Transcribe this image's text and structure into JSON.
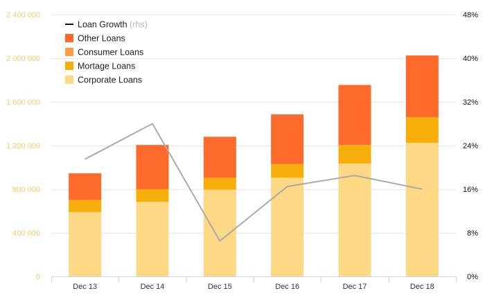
{
  "chart_data": {
    "type": "bar",
    "stacked": true,
    "categories": [
      "Dec 13",
      "Dec 14",
      "Dec 15",
      "Dec 16",
      "Dec 17",
      "Dec 18"
    ],
    "series": [
      {
        "name": "Corporate Loans",
        "color": "#fdd885",
        "values": [
          590000,
          685000,
          795000,
          905000,
          1035000,
          1225000
        ]
      },
      {
        "name": "Mortage Loans",
        "color": "#f7ae0a",
        "values": [
          110000,
          115000,
          110000,
          125000,
          170000,
          235000
        ]
      },
      {
        "name": "Consumer Loans",
        "color": "#fc9b4a",
        "values": [
          0,
          0,
          0,
          0,
          0,
          0
        ]
      },
      {
        "name": "Other Loans",
        "color": "#fd6a2c",
        "values": [
          245000,
          405000,
          375000,
          455000,
          550000,
          565000
        ]
      }
    ],
    "line_series": {
      "name": "Loan Growth",
      "note": "(rhs)",
      "color": "#aaaaaa",
      "axis": "right",
      "values": [
        21.5,
        28,
        6.5,
        16.5,
        18.5,
        16
      ]
    },
    "y_left": {
      "min": 0,
      "max": 2400000,
      "ticks": [
        0,
        400000,
        800000,
        1200000,
        1600000,
        2000000,
        2400000
      ],
      "tick_labels": [
        "0",
        "400 000",
        "800 000",
        "1 200 000",
        "1 600 000",
        "2 000 000",
        "2 400 000"
      ]
    },
    "y_right": {
      "min": 0,
      "max": 48,
      "ticks": [
        0,
        8,
        16,
        24,
        32,
        40,
        48
      ],
      "tick_labels": [
        "0%",
        "8%",
        "16%",
        "24%",
        "32%",
        "40%",
        "48%"
      ]
    },
    "legend": {
      "position": "top-left",
      "items": [
        {
          "label": "Loan Growth",
          "note": "(rhs)",
          "kind": "line",
          "color": "#111111"
        },
        {
          "label": "Other Loans",
          "kind": "box",
          "color": "#fd6a2c"
        },
        {
          "label": "Consumer Loans",
          "kind": "box",
          "color": "#fc9b4a"
        },
        {
          "label": "Mortage Loans",
          "kind": "box",
          "color": "#f7ae0a"
        },
        {
          "label": "Corporate Loans",
          "kind": "box",
          "color": "#fdd885"
        }
      ]
    },
    "grid": true,
    "colors": {
      "grid": "#e6e6e6",
      "axis": "#ccd6eb",
      "left_tick": "#f5c96a",
      "right_tick": "#111111"
    }
  }
}
